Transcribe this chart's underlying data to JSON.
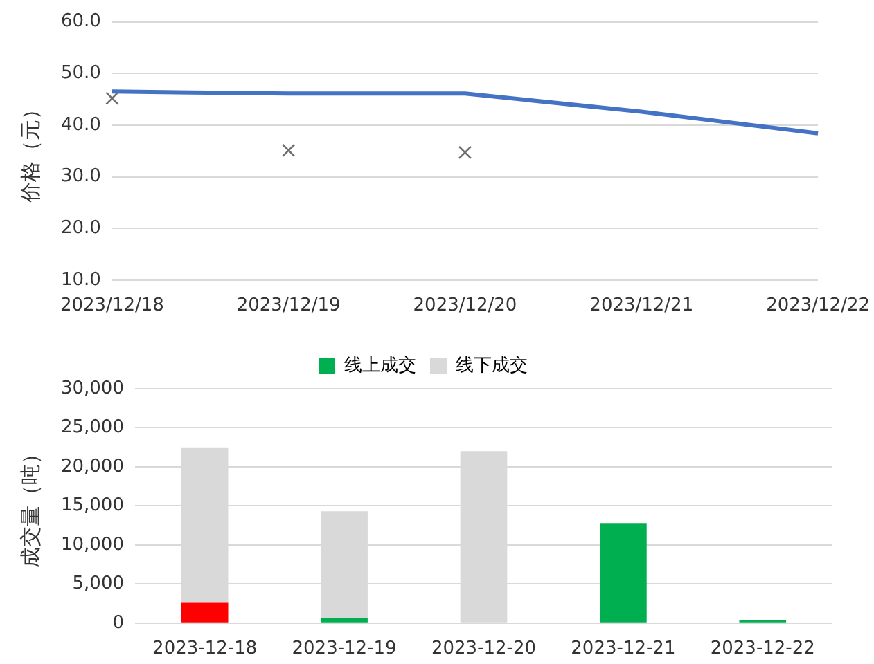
{
  "chart_data": [
    {
      "type": "line",
      "ylabel": "价格（元）",
      "categories": [
        "2023/12/18",
        "2023/12/19",
        "2023/12/20",
        "2023/12/21",
        "2023/12/22"
      ],
      "series": [
        {
          "type": "line",
          "color": "#4472c4",
          "values": [
            46.5,
            46.1,
            46.1,
            42.6,
            38.4
          ]
        },
        {
          "type": "scatter",
          "marker": "cross",
          "color": "#6e6e6e",
          "values": [
            45.2,
            35.1,
            34.7,
            null,
            null
          ]
        }
      ],
      "ylim": [
        10,
        60
      ],
      "yticks": [
        {
          "value": 10,
          "label": "10.0"
        },
        {
          "value": 20,
          "label": "20.0"
        },
        {
          "value": 30,
          "label": "30.0"
        },
        {
          "value": 40,
          "label": "40.0"
        },
        {
          "value": 50,
          "label": "50.0"
        },
        {
          "value": 60,
          "label": "60.0"
        }
      ],
      "grid": "y"
    },
    {
      "type": "bar",
      "stacked": true,
      "ylabel": "成交量（吨）",
      "legend": "top",
      "categories": [
        "2023-12-18",
        "2023-12-19",
        "2023-12-20",
        "2023-12-21",
        "2023-12-22"
      ],
      "series": [
        {
          "name": "线上成交",
          "color": "#00b050",
          "colors": [
            "#ff0000",
            "#00b050",
            "#00b050",
            "#00b050",
            "#00b050"
          ],
          "values": [
            2600,
            700,
            0,
            12800,
            400
          ]
        },
        {
          "name": "线下成交",
          "color": "#d9d9d9",
          "values": [
            19900,
            13600,
            22000,
            0,
            0
          ]
        }
      ],
      "ylim": [
        0,
        30000
      ],
      "yticks": [
        {
          "value": 0,
          "label": "0"
        },
        {
          "value": 5000,
          "label": "5,000"
        },
        {
          "value": 10000,
          "label": "10,000"
        },
        {
          "value": 15000,
          "label": "15,000"
        },
        {
          "value": 20000,
          "label": "20,000"
        },
        {
          "value": 25000,
          "label": "25,000"
        },
        {
          "value": 30000,
          "label": "30,000"
        }
      ],
      "grid": "y"
    }
  ]
}
